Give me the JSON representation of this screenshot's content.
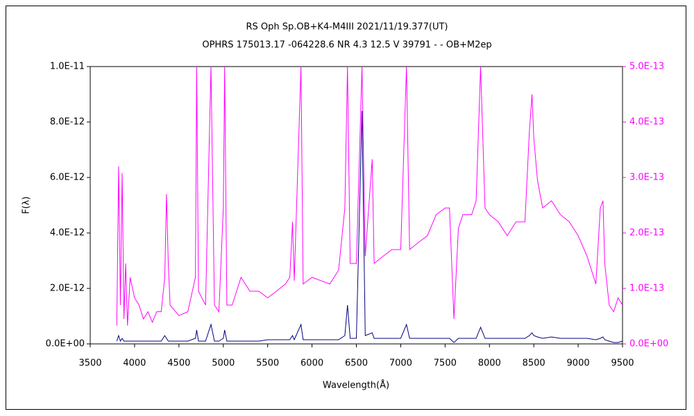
{
  "chart_data": {
    "type": "line",
    "title": "RS Oph    Sp.OB+K4-M4III    2021/11/19.377(UT)",
    "subtitle": "OPHRS 175013.17 -064228.6 NR 4.3 12.5 V 39791 - - OB+M2ep",
    "xlabel": "Wavelength(Å)",
    "ylabel": "F(λ)",
    "xlim": [
      3500,
      9500
    ],
    "xticks": [
      3500,
      4000,
      4500,
      5000,
      5500,
      6000,
      6500,
      7000,
      7500,
      8000,
      8500,
      9000,
      9500
    ],
    "ylim": [
      0,
      1e-11
    ],
    "yticks": [
      {
        "value": 0,
        "label": "0.0E+00"
      },
      {
        "value": 2e-12,
        "label": "2.0E-12"
      },
      {
        "value": 4e-12,
        "label": "4.0E-12"
      },
      {
        "value": 6e-12,
        "label": "6.0E-12"
      },
      {
        "value": 8e-12,
        "label": "8.0E-12"
      },
      {
        "value": 1e-11,
        "label": "1.0E-11"
      }
    ],
    "y2lim": [
      0,
      5e-13
    ],
    "y2ticks": [
      {
        "value": 0,
        "label": "0.0E+00"
      },
      {
        "value": 1e-13,
        "label": "1.0E-13"
      },
      {
        "value": 2e-13,
        "label": "2.0E-13"
      },
      {
        "value": 3e-13,
        "label": "3.0E-13"
      },
      {
        "value": 4e-13,
        "label": "4.0E-13"
      },
      {
        "value": 5e-13,
        "label": "5.0E-13"
      }
    ],
    "x": [
      3800,
      3820,
      3840,
      3860,
      3880,
      3900,
      3920,
      3950,
      4000,
      4050,
      4100,
      4150,
      4200,
      4250,
      4300,
      4340,
      4360,
      4380,
      4400,
      4500,
      4600,
      4686,
      4700,
      4720,
      4800,
      4861,
      4900,
      4950,
      5000,
      5015,
      5040,
      5100,
      5200,
      5300,
      5400,
      5500,
      5600,
      5700,
      5750,
      5780,
      5800,
      5876,
      5900,
      6000,
      6100,
      6200,
      6300,
      6370,
      6400,
      6430,
      6500,
      6563,
      6600,
      6678,
      6700,
      6800,
      6900,
      7000,
      7065,
      7100,
      7200,
      7300,
      7400,
      7500,
      7550,
      7600,
      7650,
      7700,
      7800,
      7850,
      7900,
      7950,
      8000,
      8100,
      8200,
      8300,
      8400,
      8450,
      8480,
      8500,
      8542,
      8600,
      8700,
      8800,
      8900,
      9000,
      9100,
      9200,
      9250,
      9280,
      9300,
      9350,
      9400,
      9450,
      9500
    ],
    "series": [
      {
        "color": "#ff00ff",
        "axis": "y2",
        "values": [
          3.3e-14,
          3.2e-13,
          7e-14,
          3.08e-13,
          4.5e-14,
          1.45e-13,
          3.3e-14,
          1.2e-13,
          8.3e-14,
          7e-14,
          4.5e-14,
          5.8e-14,
          3.9e-14,
          5.8e-14,
          5.8e-14,
          1.2e-13,
          2.7e-13,
          1.45e-13,
          7e-14,
          5.1e-14,
          5.8e-14,
          1.2e-13,
          5e-13,
          9.5e-14,
          7e-14,
          5e-13,
          7e-14,
          5.8e-14,
          2.45e-13,
          5e-13,
          7e-14,
          7e-14,
          1.2e-13,
          9.5e-14,
          9.5e-14,
          8.3e-14,
          9.5e-14,
          1.08e-13,
          1.2e-13,
          2.2e-13,
          1.14e-13,
          5e-13,
          1.08e-13,
          1.2e-13,
          1.14e-13,
          1.08e-13,
          1.33e-13,
          2.45e-13,
          5e-13,
          1.45e-13,
          1.45e-13,
          5e-13,
          1.58e-13,
          3.33e-13,
          1.45e-13,
          1.58e-13,
          1.7e-13,
          1.7e-13,
          5e-13,
          1.7e-13,
          1.83e-13,
          1.95e-13,
          2.33e-13,
          2.45e-13,
          2.45e-13,
          4.5e-14,
          2.08e-13,
          2.33e-13,
          2.33e-13,
          2.58e-13,
          5e-13,
          2.45e-13,
          2.33e-13,
          2.2e-13,
          1.95e-13,
          2.2e-13,
          2.2e-13,
          3.83e-13,
          4.5e-13,
          3.7e-13,
          2.95e-13,
          2.45e-13,
          2.58e-13,
          2.33e-13,
          2.2e-13,
          1.95e-13,
          1.58e-13,
          1.08e-13,
          2.45e-13,
          2.58e-13,
          1.45e-13,
          7e-14,
          5.8e-14,
          8.3e-14,
          7e-14
        ]
      },
      {
        "color": "#000080",
        "values": [
          1e-13,
          3e-13,
          1e-13,
          2e-13,
          1e-13,
          1e-13,
          1e-13,
          1e-13,
          1e-13,
          1e-13,
          1e-13,
          1e-13,
          1e-13,
          1e-13,
          1e-13,
          3e-13,
          2e-13,
          1e-13,
          1e-13,
          1e-13,
          1e-13,
          2e-13,
          5e-13,
          1e-13,
          1e-13,
          7e-13,
          1e-13,
          1e-13,
          2e-13,
          5e-13,
          1e-13,
          1e-13,
          1e-13,
          1e-13,
          1e-13,
          1.5e-13,
          1.5e-13,
          1.5e-13,
          1.5e-13,
          3e-13,
          1.5e-13,
          7e-13,
          1.5e-13,
          1.5e-13,
          1.5e-13,
          1.5e-13,
          1.5e-13,
          3e-13,
          1.4e-12,
          2e-13,
          2e-13,
          8.4e-12,
          3e-13,
          4e-13,
          2e-13,
          2e-13,
          2e-13,
          2e-13,
          7e-13,
          2e-13,
          2e-13,
          2e-13,
          2e-13,
          2e-13,
          2e-13,
          5e-14,
          2e-13,
          2e-13,
          2e-13,
          2e-13,
          6e-13,
          2e-13,
          2e-13,
          2e-13,
          2e-13,
          2e-13,
          2e-13,
          3e-13,
          4e-13,
          3e-13,
          2.5e-13,
          2e-13,
          2.5e-13,
          2e-13,
          2e-13,
          2e-13,
          2e-13,
          1.5e-13,
          2e-13,
          2.5e-13,
          1.5e-13,
          1e-13,
          5e-14,
          5e-14,
          1e-13
        ]
      }
    ]
  }
}
